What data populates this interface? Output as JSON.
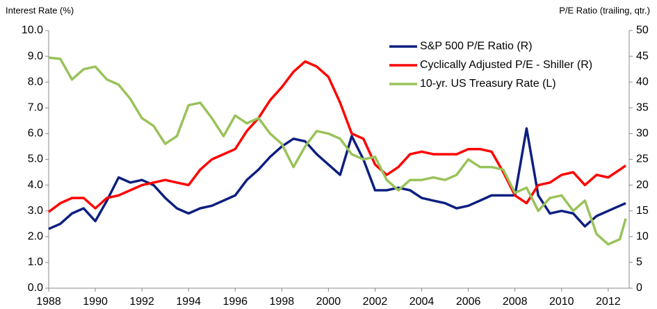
{
  "chart_data": {
    "type": "line",
    "ylabel": "Interest Rate (%)",
    "y2label": "P/E Ratio (trailing, qtr.)",
    "x": [
      1988,
      1988.5,
      1989,
      1989.5,
      1990,
      1990.5,
      1991,
      1991.5,
      1992,
      1992.5,
      1993,
      1993.5,
      1994,
      1994.5,
      1995,
      1995.5,
      1996,
      1996.5,
      1997,
      1997.5,
      1998,
      1998.5,
      1999,
      1999.5,
      2000,
      2000.5,
      2001,
      2001.5,
      2002,
      2002.5,
      2003,
      2003.5,
      2004,
      2004.5,
      2005,
      2005.5,
      2006,
      2006.5,
      2007,
      2007.5,
      2008,
      2008.5,
      2009,
      2009.5,
      2010,
      2010.5,
      2011,
      2011.5,
      2012,
      2012.5,
      2012.75
    ],
    "series": [
      {
        "name": "S&P 500 P/E Ratio (R)",
        "color": "#0d1f80",
        "axis": "y2",
        "values": [
          11.5,
          12.5,
          14.5,
          15.5,
          13,
          17,
          21.5,
          20.5,
          21,
          20,
          17.5,
          15.5,
          14.5,
          15.5,
          16,
          17,
          18,
          21,
          23,
          25.5,
          27.5,
          29,
          28.5,
          26,
          24,
          22,
          29.5,
          25,
          19,
          19,
          19.5,
          19,
          17.5,
          17,
          16.5,
          15.5,
          16,
          17,
          18,
          18,
          18,
          31,
          18,
          14.5,
          15,
          14.5,
          12,
          14,
          15,
          16,
          16.5
        ]
      },
      {
        "name": "Cyclically Adjusted P/E - Shiller (R)",
        "color": "#ff0000",
        "axis": "y2",
        "values": [
          14.8,
          16.5,
          17.5,
          17.5,
          15.5,
          17.5,
          18,
          19,
          20,
          20.5,
          21,
          20.5,
          20,
          23,
          25,
          26,
          27,
          30.5,
          33,
          36.5,
          39,
          42,
          44,
          43,
          41,
          36,
          30,
          29,
          24,
          22,
          23.5,
          26,
          26.5,
          26,
          26,
          26,
          27,
          27,
          26.5,
          22.5,
          18,
          16.5,
          20,
          20.5,
          22,
          22.5,
          20,
          22,
          21.5,
          23,
          23.8
        ]
      },
      {
        "name": "10-yr. US Treasury Rate (L)",
        "color": "#99c25a",
        "axis": "y",
        "values": [
          8.95,
          8.9,
          8.1,
          8.5,
          8.6,
          8.1,
          7.9,
          7.35,
          6.6,
          6.3,
          5.6,
          5.9,
          7.1,
          7.2,
          6.6,
          5.9,
          6.7,
          6.4,
          6.6,
          6.0,
          5.6,
          4.7,
          5.5,
          6.1,
          6.0,
          5.8,
          5.2,
          5.0,
          5.1,
          4.2,
          3.8,
          4.2,
          4.2,
          4.3,
          4.2,
          4.4,
          5.0,
          4.7,
          4.7,
          4.6,
          3.7,
          3.9,
          3.0,
          3.5,
          3.6,
          3.0,
          3.4,
          2.1,
          1.7,
          1.9,
          2.7
        ]
      }
    ],
    "xlim": [
      1988,
      2012.9
    ],
    "xticks": [
      1988,
      1990,
      1992,
      1994,
      1996,
      1998,
      2000,
      2002,
      2004,
      2006,
      2008,
      2010,
      2012
    ],
    "ylim": [
      0,
      10
    ],
    "yticks": [
      {
        "value": 0,
        "label": "0.0"
      },
      {
        "value": 1,
        "label": "1.0"
      },
      {
        "value": 2,
        "label": "2.0"
      },
      {
        "value": 3,
        "label": "3.0"
      },
      {
        "value": 4,
        "label": "4.0"
      },
      {
        "value": 5,
        "label": "5.0"
      },
      {
        "value": 6,
        "label": "6.0"
      },
      {
        "value": 7,
        "label": "7.0"
      },
      {
        "value": 8,
        "label": "8.0"
      },
      {
        "value": 9,
        "label": "9.0"
      },
      {
        "value": 10,
        "label": "10.0"
      }
    ],
    "y2lim": [
      0,
      50
    ],
    "y2ticks": [
      0,
      5,
      10,
      15,
      20,
      25,
      30,
      35,
      40,
      45,
      50
    ],
    "legend": "upper right",
    "grid": false
  }
}
